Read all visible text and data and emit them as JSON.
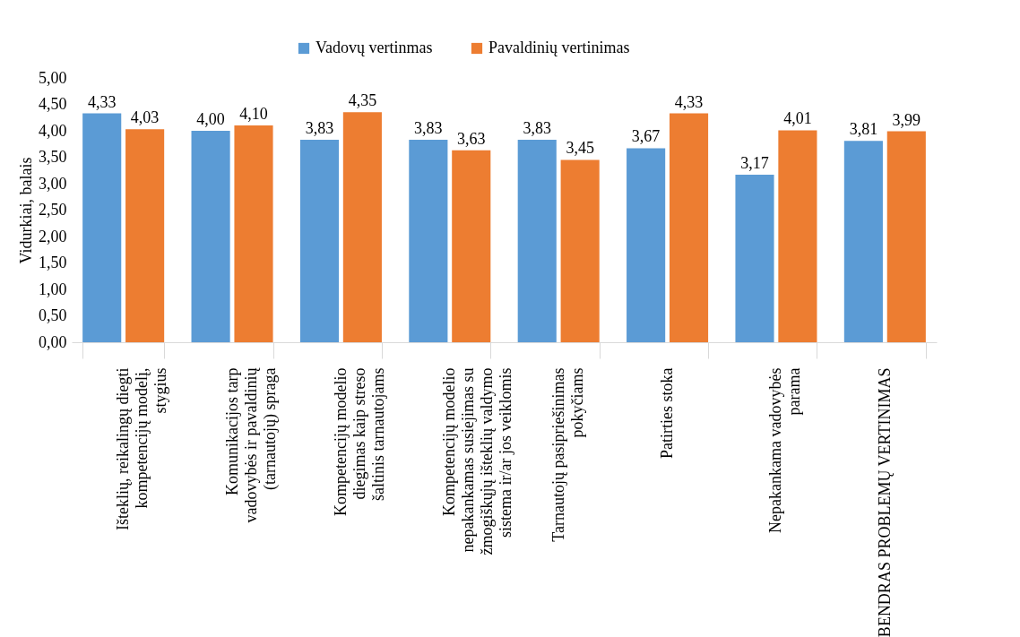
{
  "chart_data": {
    "type": "bar",
    "ylabel": "Vidurkiai, balais",
    "categories": [
      "Išteklių, reikalingų diegti kompetencijų modelį, stygius",
      "Komunikacijos tarp vadovybės ir pavaldinių (tarnautojų) spraga",
      "Kompetencijų modelio diegimas kaip streso šaltinis tarnautojams",
      "Kompetencijų modelio nepakankamas susiejimas su žmogiškųjų išteklių valdymo sistema ir/ar jos veiklomis",
      "Tarnautojų pasipriešinimas pokyčiams",
      "Patirties stoka",
      "Nepakankama vadovybės parama",
      "BENDRAS PROBLEMŲ VERTINIMAS"
    ],
    "series": [
      {
        "name": "Vadovų vertinmas",
        "color": "#5b9bd5",
        "values": [
          4.33,
          4.0,
          3.83,
          3.83,
          3.83,
          3.67,
          3.17,
          3.81
        ],
        "value_labels": [
          "4,33",
          "4,00",
          "3,83",
          "3,83",
          "3,83",
          "3,67",
          "3,17",
          "3,81"
        ]
      },
      {
        "name": "Pavaldinių vertinimas",
        "color": "#ed7d31",
        "values": [
          4.03,
          4.1,
          4.35,
          3.63,
          3.45,
          4.33,
          4.01,
          3.99
        ],
        "value_labels": [
          "4,03",
          "4,10",
          "4,35",
          "3,63",
          "3,45",
          "4,33",
          "4,01",
          "3,99"
        ]
      }
    ],
    "ylim": [
      0,
      5
    ],
    "yticks": [
      {
        "value": 0,
        "label": "0,00"
      },
      {
        "value": 0.5,
        "label": "0,50"
      },
      {
        "value": 1,
        "label": "1,00"
      },
      {
        "value": 1.5,
        "label": "1,50"
      },
      {
        "value": 2,
        "label": "2,00"
      },
      {
        "value": 2.5,
        "label": "2,50"
      },
      {
        "value": 3,
        "label": "3,00"
      },
      {
        "value": 3.5,
        "label": "3,50"
      },
      {
        "value": 4,
        "label": "4,00"
      },
      {
        "value": 4.5,
        "label": "4,50"
      },
      {
        "value": 5,
        "label": "5,00"
      }
    ],
    "grid": false,
    "legend": "top"
  }
}
